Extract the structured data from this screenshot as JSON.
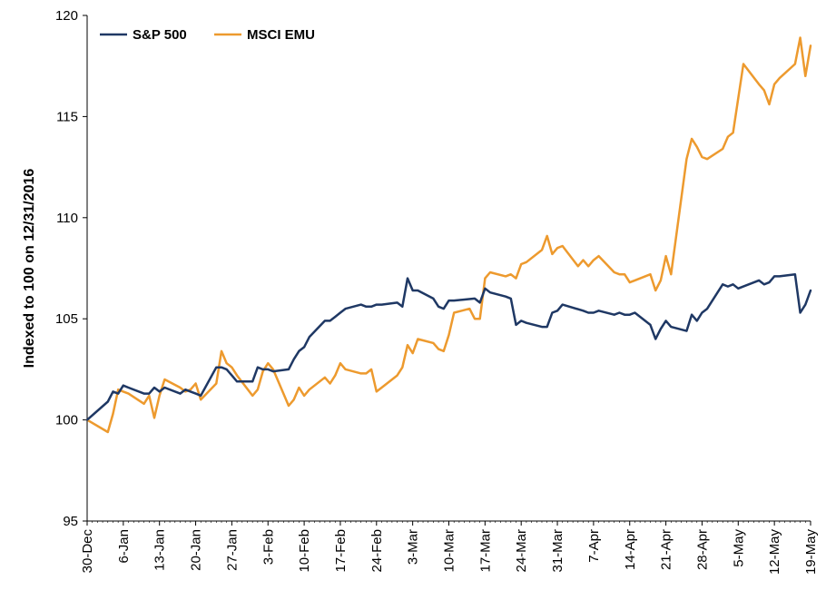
{
  "chart_data": {
    "type": "line",
    "title": "",
    "xlabel": "",
    "ylabel": "Indexed to 100 on 12/31/2016",
    "ylim": [
      95,
      120
    ],
    "yticks": [
      "95",
      "100",
      "105",
      "110",
      "115",
      "120"
    ],
    "x_tick_labels": [
      "30-Dec",
      "6-Jan",
      "13-Jan",
      "20-Jan",
      "27-Jan",
      "3-Feb",
      "10-Feb",
      "17-Feb",
      "24-Feb",
      "3-Mar",
      "10-Mar",
      "17-Mar",
      "24-Mar",
      "31-Mar",
      "7-Apr",
      "14-Apr",
      "21-Apr",
      "28-Apr",
      "5-May",
      "12-May",
      "19-May"
    ],
    "x_range_days": [
      0,
      140
    ],
    "grid": false,
    "legend_position": "top-left",
    "series": [
      {
        "name": "S&P 500",
        "color": "#1f3864",
        "x": [
          0,
          4,
          5,
          6,
          7,
          8,
          11,
          12,
          13,
          14,
          15,
          18,
          19,
          20,
          21,
          22,
          25,
          26,
          27,
          28,
          29,
          32,
          33,
          34,
          35,
          36,
          39,
          40,
          41,
          42,
          43,
          46,
          47,
          48,
          49,
          50,
          53,
          54,
          55,
          56,
          57,
          60,
          61,
          62,
          63,
          64,
          67,
          68,
          69,
          70,
          71,
          75,
          76,
          77,
          78,
          81,
          82,
          83,
          84,
          85,
          88,
          89,
          90,
          91,
          92,
          96,
          97,
          98,
          99,
          102,
          103,
          104,
          105,
          106,
          109,
          110,
          111,
          112,
          113,
          116,
          117,
          118,
          119,
          120,
          123,
          124,
          125,
          126,
          127,
          130,
          131,
          132,
          133,
          134,
          137,
          138,
          139,
          140
        ],
        "values": [
          100.0,
          100.9,
          101.4,
          101.3,
          101.7,
          101.6,
          101.3,
          101.3,
          101.6,
          101.4,
          101.6,
          101.3,
          101.5,
          101.4,
          101.3,
          101.2,
          102.6,
          102.6,
          102.5,
          102.2,
          101.9,
          101.9,
          102.6,
          102.5,
          102.5,
          102.4,
          102.5,
          103.0,
          103.4,
          103.6,
          104.1,
          104.9,
          104.9,
          105.1,
          105.3,
          105.5,
          105.7,
          105.6,
          105.6,
          105.7,
          105.7,
          105.8,
          105.6,
          107.0,
          106.4,
          106.4,
          106.0,
          105.6,
          105.5,
          105.9,
          105.9,
          106.0,
          105.8,
          106.5,
          106.3,
          106.1,
          106.0,
          104.7,
          104.9,
          104.8,
          104.6,
          104.6,
          105.3,
          105.4,
          105.7,
          105.4,
          105.3,
          105.3,
          105.4,
          105.2,
          105.3,
          105.2,
          105.2,
          105.3,
          104.7,
          104.0,
          104.5,
          104.9,
          104.6,
          104.4,
          105.2,
          104.9,
          105.3,
          105.5,
          106.7,
          106.6,
          106.7,
          106.5,
          106.6,
          106.9,
          106.7,
          106.8,
          107.1,
          107.1,
          107.2,
          105.3,
          105.7,
          106.4
        ]
      },
      {
        "name": "MSCI EMU",
        "color": "#ed9a2e",
        "x": [
          0,
          4,
          5,
          6,
          7,
          8,
          11,
          12,
          13,
          14,
          15,
          18,
          19,
          20,
          21,
          22,
          25,
          26,
          27,
          28,
          29,
          32,
          33,
          34,
          35,
          36,
          39,
          40,
          41,
          42,
          43,
          46,
          47,
          48,
          49,
          50,
          53,
          54,
          55,
          56,
          57,
          60,
          61,
          62,
          63,
          64,
          67,
          68,
          69,
          70,
          71,
          74,
          75,
          76,
          77,
          78,
          81,
          82,
          83,
          84,
          85,
          88,
          89,
          90,
          91,
          92,
          95,
          96,
          97,
          98,
          99,
          102,
          103,
          104,
          105,
          106,
          109,
          110,
          111,
          112,
          113,
          116,
          117,
          118,
          119,
          120,
          123,
          124,
          125,
          126,
          127,
          130,
          131,
          132,
          133,
          134,
          137,
          138,
          139,
          140
        ],
        "values": [
          100.0,
          99.4,
          100.3,
          101.5,
          101.4,
          101.3,
          100.8,
          101.2,
          100.1,
          101.2,
          102.0,
          101.6,
          101.4,
          101.5,
          101.8,
          101.0,
          101.8,
          103.4,
          102.8,
          102.6,
          102.2,
          101.2,
          101.5,
          102.4,
          102.8,
          102.5,
          100.7,
          101.0,
          101.6,
          101.2,
          101.5,
          102.1,
          101.8,
          102.2,
          102.8,
          102.5,
          102.3,
          102.3,
          102.5,
          101.4,
          101.6,
          102.2,
          102.6,
          103.7,
          103.3,
          104.0,
          103.8,
          103.5,
          103.4,
          104.2,
          105.3,
          105.5,
          105.0,
          105.0,
          107.0,
          107.3,
          107.1,
          107.2,
          107.0,
          107.7,
          107.8,
          108.4,
          109.1,
          108.2,
          108.5,
          108.6,
          107.6,
          107.9,
          107.6,
          107.9,
          108.1,
          107.3,
          107.2,
          107.2,
          106.8,
          106.9,
          107.2,
          106.4,
          106.9,
          108.1,
          107.2,
          112.9,
          113.9,
          113.5,
          113.0,
          112.9,
          113.4,
          114.0,
          114.2,
          115.9,
          117.6,
          116.6,
          116.3,
          115.6,
          116.6,
          116.9,
          117.6,
          118.9,
          117.0,
          118.5
        ]
      }
    ]
  }
}
